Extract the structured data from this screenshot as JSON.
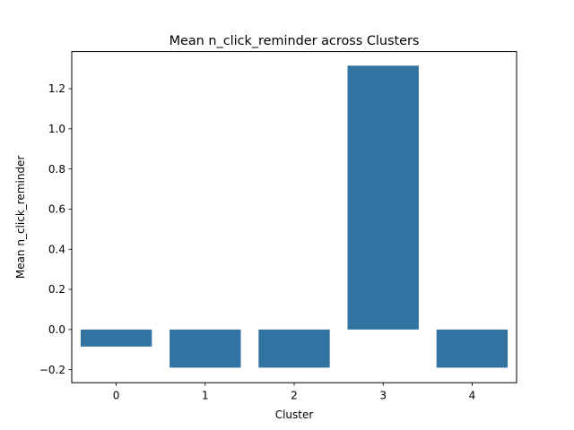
{
  "chart_data": {
    "type": "bar",
    "title": "Mean n_click_reminder across Clusters",
    "xlabel": "Cluster",
    "ylabel": "Mean n_click_reminder",
    "categories": [
      "0",
      "1",
      "2",
      "3",
      "4"
    ],
    "values": [
      -0.085,
      -0.19,
      -0.19,
      1.315,
      -0.19
    ],
    "ylim": [
      -0.265,
      1.385
    ],
    "yticks": [
      -0.2,
      0.0,
      0.2,
      0.4,
      0.6,
      0.8,
      1.0,
      1.2
    ],
    "ytick_labels": [
      "−0.2",
      "0.0",
      "0.2",
      "0.4",
      "0.6",
      "0.8",
      "1.0",
      "1.2"
    ],
    "bar_color": "#3274a1",
    "grid": false,
    "legend": "none"
  }
}
